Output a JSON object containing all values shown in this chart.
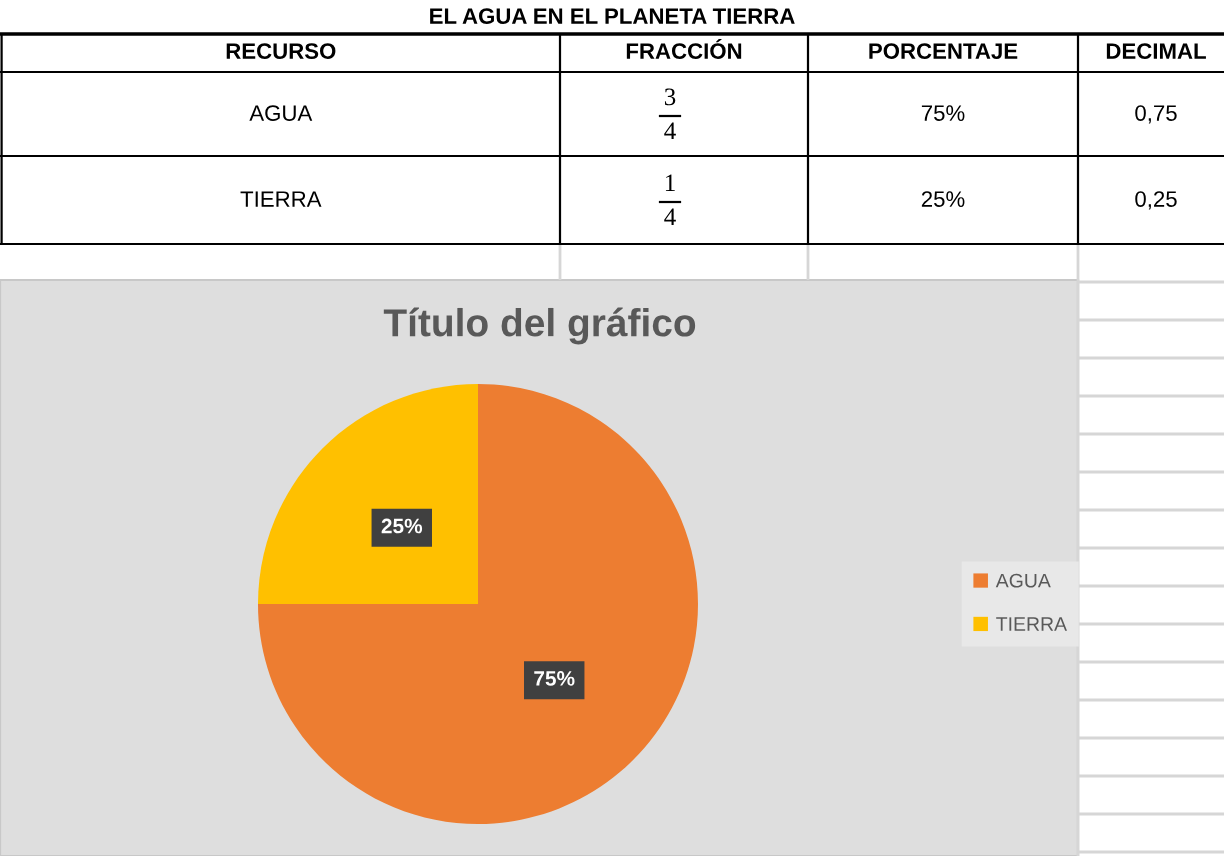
{
  "chart_data": [
    {
      "type": "other",
      "title": "EL AGUA EN EL PLANETA TIERRA",
      "annotations": [
        "RECURSO",
        "FRACCIÓN",
        "PORCENTAJE",
        "DECIMAL",
        "AGUA",
        "3",
        "4",
        "75%",
        "0,75",
        "TIERRA",
        "1",
        "4",
        "25%",
        "0,25"
      ]
    },
    {
      "type": "pie",
      "title": "Título del gráfico",
      "categories": [
        "AGUA",
        "TIERRA"
      ],
      "values": [
        75,
        25
      ],
      "colors": [
        "#ed7d31",
        "#ffc000"
      ],
      "value_labels": [
        "75%",
        "25%"
      ],
      "legend": "right"
    }
  ]
}
